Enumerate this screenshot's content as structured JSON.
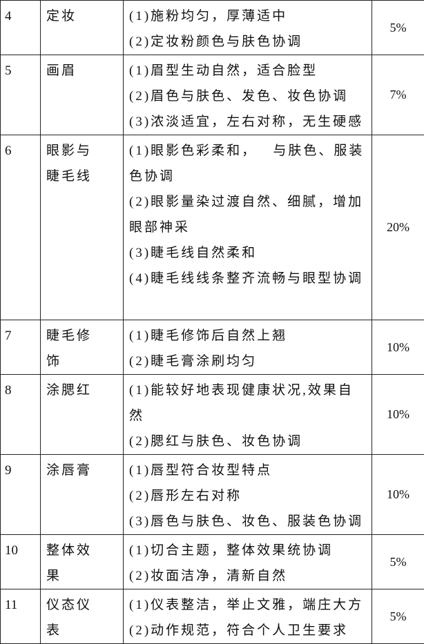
{
  "table": {
    "rows": [
      {
        "no": "4",
        "item": "定妆",
        "criteria": [
          "(1)施粉均匀，厚薄适中",
          "(2)定妆粉颜色与肤色协调"
        ],
        "weight": "5%"
      },
      {
        "no": "5",
        "item": "画眉",
        "criteria": [
          "(1)眉型生动自然，适合脸型",
          "(2)眉色与肤色、发色、妆色协调",
          "(3)浓淡适宜，左右对称，无生硬感"
        ],
        "weight": "7%"
      },
      {
        "no": "6",
        "item": "眼影与睫毛线",
        "criteria": [
          "(1)眼影色彩柔和，   与肤色、服装色协调",
          "(2)眼影量染过渡自然、细腻，增加眼部神采",
          "(3)睫毛线自然柔和",
          "(4)睫毛线线条整齐流畅与眼型协调"
        ],
        "weight": "20%"
      },
      {
        "no": "7",
        "item": "睫毛修饰",
        "criteria": [
          "(1)睫毛修饰后自然上翘",
          "(2)睫毛膏涂刷均匀"
        ],
        "weight": "10%"
      },
      {
        "no": "8",
        "item": "涂腮红",
        "criteria": [
          "(1)能较好地表现健康状况,效果自然",
          "(2)腮红与肤色、妆色协调"
        ],
        "weight": "10%"
      },
      {
        "no": "9",
        "item": "涂唇膏",
        "criteria": [
          "(1)唇型符合妆型特点",
          "(2)唇形左右对称",
          "(3)唇色与肤色、妆色、服装色协调"
        ],
        "weight": "10%"
      },
      {
        "no": "10",
        "item": "整体效果",
        "criteria": [
          "(1)切合主题，整体效果统协调",
          "(2)妆面洁净，清新自然"
        ],
        "weight": "5%"
      },
      {
        "no": "11",
        "item": "仪态仪表",
        "criteria": [
          "(1)仪表整洁，举止文雅，端庄大方",
          "(2)动作规范，符合个人卫生要求"
        ],
        "weight": "5%"
      }
    ]
  }
}
